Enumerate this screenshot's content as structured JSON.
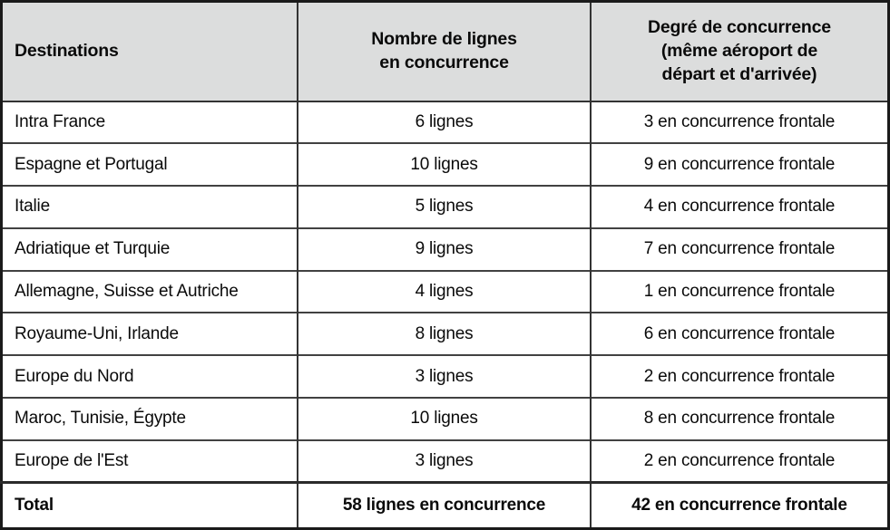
{
  "table": {
    "header": {
      "col1": "Destinations",
      "col2": "Nombre de lignes\nen concurrence",
      "col3": "Degré de concurrence\n(même aéroport de\ndépart et d'arrivée)"
    },
    "rows": [
      {
        "destination": "Intra France",
        "lines": "6 lignes",
        "frontal": "3 en concurrence frontale"
      },
      {
        "destination": "Espagne et Portugal",
        "lines": "10 lignes",
        "frontal": "9 en concurrence frontale"
      },
      {
        "destination": "Italie",
        "lines": "5 lignes",
        "frontal": "4 en concurrence frontale"
      },
      {
        "destination": "Adriatique et Turquie",
        "lines": "9 lignes",
        "frontal": "7 en concurrence frontale"
      },
      {
        "destination": "Allemagne, Suisse et Autriche",
        "lines": "4 lignes",
        "frontal": "1 en concurrence frontale"
      },
      {
        "destination": "Royaume-Uni, Irlande",
        "lines": "8 lignes",
        "frontal": "6 en concurrence frontale"
      },
      {
        "destination": "Europe du Nord",
        "lines": "3 lignes",
        "frontal": "2 en concurrence frontale"
      },
      {
        "destination": "Maroc, Tunisie, Égypte",
        "lines": "10 lignes",
        "frontal": "8 en concurrence frontale"
      },
      {
        "destination": "Europe de l'Est",
        "lines": "3 lignes",
        "frontal": "2 en concurrence frontale"
      }
    ],
    "total": {
      "destination": "Total",
      "lines": "58 lignes en concurrence",
      "frontal": "42 en concurrence frontale"
    },
    "colors": {
      "header_bg": "#dcdddd",
      "outer_border": "#1a1a1a",
      "inner_border": "#333333",
      "text": "#0a0a0a"
    }
  }
}
